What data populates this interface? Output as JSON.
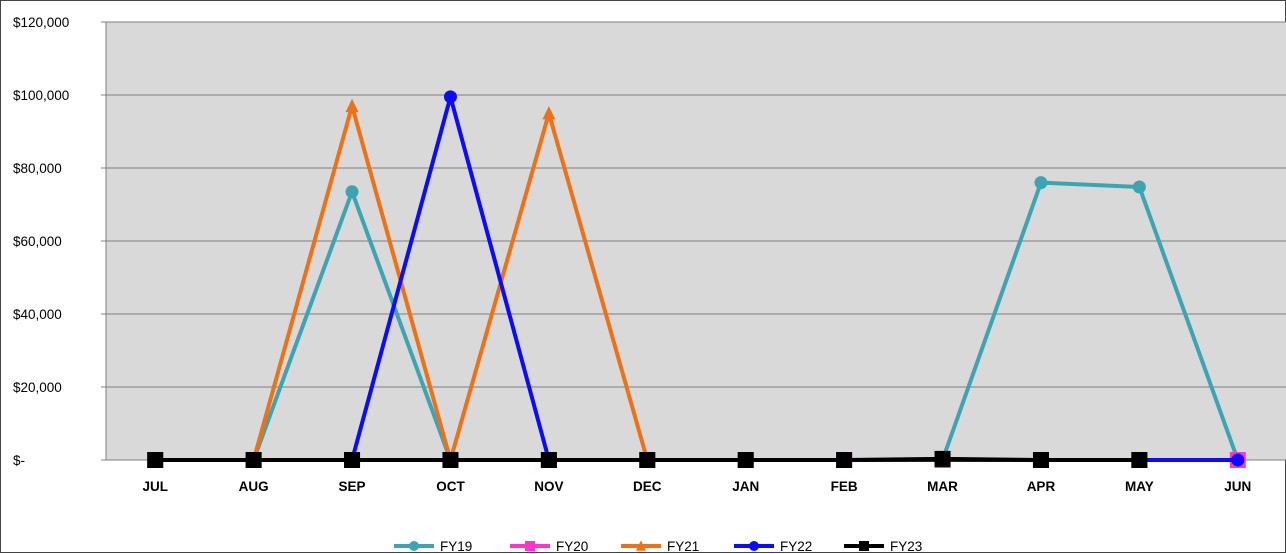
{
  "chart_data": {
    "type": "line",
    "title": "",
    "xlabel": "",
    "ylabel": "",
    "categories": [
      "JUL",
      "AUG",
      "SEP",
      "OCT",
      "NOV",
      "DEC",
      "JAN",
      "FEB",
      "MAR",
      "APR",
      "MAY",
      "JUN"
    ],
    "ylim": [
      0,
      120000
    ],
    "y_ticks": [
      0,
      20000,
      40000,
      60000,
      80000,
      100000,
      120000
    ],
    "y_tick_labels": [
      "$-",
      "$20,000",
      "$40,000",
      "$60,000",
      "$80,000",
      "$100,000",
      "$120,000"
    ],
    "grid": true,
    "legend_position": "bottom",
    "plot_background": "#d9d9d9",
    "series": [
      {
        "name": "FY19",
        "color": "#3ca5b4",
        "marker": "circle",
        "values": [
          0,
          0,
          73500,
          0,
          0,
          0,
          0,
          0,
          0,
          76000,
          74800,
          0
        ]
      },
      {
        "name": "FY20",
        "color": "#ff33cc",
        "marker": "square",
        "values": [
          0,
          0,
          0,
          0,
          0,
          0,
          0,
          0,
          0,
          0,
          0,
          0
        ]
      },
      {
        "name": "FY21",
        "color": "#ee7215",
        "marker": "triangle",
        "values": [
          0,
          0,
          97000,
          0,
          95000,
          0,
          0,
          0,
          0,
          0,
          0,
          0
        ]
      },
      {
        "name": "FY22",
        "color": "#0b0bff",
        "marker": "circle",
        "values": [
          0,
          0,
          0,
          99500,
          0,
          0,
          0,
          0,
          0,
          0,
          0,
          0
        ]
      },
      {
        "name": "FY23",
        "color": "#000000",
        "marker": "square",
        "values": [
          0,
          0,
          0,
          0,
          0,
          0,
          0,
          0,
          300,
          0,
          0,
          null
        ]
      }
    ]
  }
}
